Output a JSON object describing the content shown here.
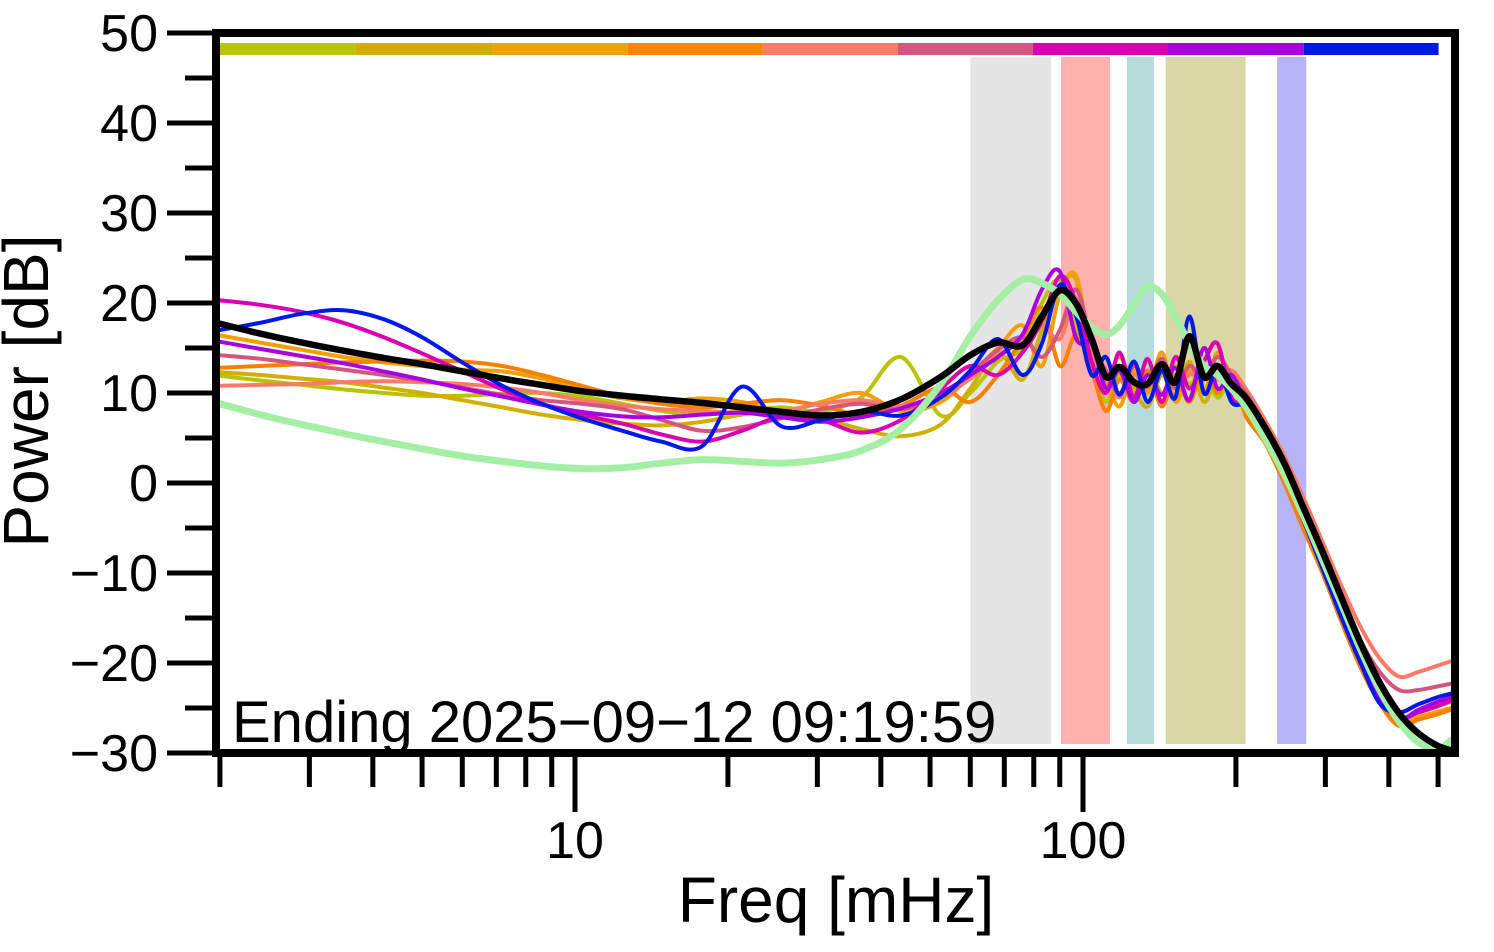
{
  "annotation": "Ending 2025−09−12 09:19:59",
  "chart_data": {
    "type": "line",
    "title": "",
    "xlabel": "Freq [mHz]",
    "ylabel": "Power [dB]",
    "x_scale": "log",
    "xlim": [
      2,
      530
    ],
    "ylim": [
      -30,
      50
    ],
    "grid": false,
    "legend_position": "none",
    "x_major_ticks": [
      10,
      100
    ],
    "x_major_tick_labels": [
      "10",
      "100"
    ],
    "x_minor_ticks": [
      2,
      3,
      4,
      5,
      6,
      7,
      8,
      9,
      20,
      30,
      40,
      50,
      60,
      70,
      80,
      90,
      200,
      300,
      400,
      500
    ],
    "y_major_ticks": [
      50,
      40,
      30,
      20,
      10,
      0,
      -10,
      -20,
      -30
    ],
    "y_major_tick_labels": [
      "50",
      "40",
      "30",
      "20",
      "10",
      "0",
      "−10",
      "−20",
      "−30"
    ],
    "y_minor_ticks": [
      45,
      35,
      25,
      15,
      5,
      -5,
      -15,
      -25
    ],
    "x_mHz": [
      2,
      2.4,
      2.9,
      3.5,
      4.2,
      5,
      6,
      7.2,
      8.6,
      10.3,
      12.4,
      14.8,
      17.8,
      21.3,
      25.5,
      30.5,
      36.6,
      43.8,
      52.5,
      60,
      68,
      76,
      83,
      90,
      97,
      104,
      111,
      118,
      126,
      134,
      143,
      152,
      162,
      173,
      184,
      196,
      209,
      228,
      249,
      271,
      296,
      323,
      352,
      384,
      419,
      457,
      499,
      530
    ],
    "series": [
      {
        "name": "spectrum-1-chartreuse",
        "color": "#b8c400",
        "width": 4,
        "values": [
          11.9,
          11.4,
          10.9,
          10.4,
          10.0,
          9.7,
          9.7,
          9.9,
          10.0,
          9.6,
          8.8,
          8.0,
          7.6,
          8.0,
          8.4,
          8.0,
          9.5,
          14.0,
          7.5,
          10.0,
          13.5,
          15.0,
          20.0,
          22.5,
          17.0,
          13.0,
          9.0,
          12.0,
          10.0,
          13.5,
          10.0,
          13.0,
          11.0,
          12.5,
          9.5,
          11.5,
          8.5,
          5.0,
          0.8,
          -4.2,
          -9.2,
          -14.8,
          -19.8,
          -23.8,
          -26.3,
          -25.5,
          -24.7,
          -24.0
        ]
      },
      {
        "name": "spectrum-2-gold",
        "color": "#d2ae00",
        "width": 4,
        "values": [
          12.3,
          12.0,
          11.6,
          11.2,
          10.6,
          10.0,
          9.2,
          8.4,
          7.6,
          7.0,
          6.6,
          6.4,
          6.8,
          7.6,
          8.0,
          7.2,
          6.0,
          5.2,
          6.5,
          10.5,
          14.5,
          11.5,
          17.0,
          21.5,
          22.5,
          13.0,
          11.0,
          14.0,
          10.5,
          8.5,
          12.0,
          9.5,
          13.5,
          9.0,
          12.0,
          10.5,
          9.5,
          5.5,
          1.0,
          -3.5,
          -9.5,
          -14.0,
          -19.5,
          -23.5,
          -26.0,
          -25.4,
          -24.8,
          -24.3
        ]
      },
      {
        "name": "spectrum-3-orange",
        "color": "#f2a000",
        "width": 4,
        "values": [
          16.4,
          15.6,
          14.8,
          14.0,
          13.4,
          13.0,
          12.6,
          12.4,
          11.6,
          10.4,
          9.4,
          9.0,
          9.4,
          9.0,
          8.0,
          9.0,
          10.0,
          8.0,
          9.0,
          12.0,
          15.0,
          17.5,
          13.0,
          21.0,
          23.0,
          14.0,
          11.5,
          8.5,
          12.5,
          10.0,
          14.5,
          9.0,
          12.5,
          10.0,
          14.5,
          11.0,
          8.0,
          5.0,
          0.5,
          -4.5,
          -9.0,
          -14.5,
          -19.5,
          -23.5,
          -26.5,
          -26.0,
          -25.4,
          -25.0
        ]
      },
      {
        "name": "spectrum-4-darkorange",
        "color": "#f87f00",
        "width": 4,
        "values": [
          12.8,
          13.0,
          13.2,
          13.4,
          13.5,
          13.6,
          13.5,
          13.0,
          12.0,
          10.8,
          9.6,
          8.8,
          8.4,
          8.8,
          9.2,
          8.6,
          7.6,
          8.6,
          10.6,
          9.0,
          12.0,
          16.0,
          19.5,
          13.0,
          16.5,
          12.5,
          8.0,
          11.5,
          9.0,
          12.5,
          8.5,
          12.0,
          9.0,
          13.0,
          10.0,
          12.5,
          7.5,
          4.5,
          0.0,
          -5.0,
          -10.0,
          -15.5,
          -20.5,
          -24.5,
          -27.0,
          -26.3,
          -25.7,
          -25.2
        ]
      },
      {
        "name": "spectrum-5-salmon",
        "color": "#fa7a68",
        "width": 4,
        "values": [
          10.8,
          10.9,
          11.0,
          11.2,
          11.3,
          11.2,
          11.0,
          10.6,
          10.0,
          9.2,
          8.6,
          8.2,
          8.0,
          7.8,
          8.0,
          8.8,
          9.2,
          8.6,
          9.6,
          11.6,
          14.2,
          15.8,
          17.5,
          16.0,
          20.5,
          14.5,
          12.0,
          9.5,
          12.0,
          10.5,
          13.5,
          11.0,
          12.0,
          13.0,
          11.5,
          12.5,
          10.5,
          7.0,
          3.0,
          -1.5,
          -6.5,
          -11.5,
          -16.0,
          -19.5,
          -21.5,
          -21.0,
          -20.3,
          -19.8
        ]
      },
      {
        "name": "spectrum-6-raspberry",
        "color": "#d4557f",
        "width": 4,
        "values": [
          14.2,
          13.8,
          13.2,
          12.6,
          12.0,
          11.4,
          10.6,
          9.8,
          9.2,
          8.8,
          8.2,
          7.0,
          5.8,
          6.2,
          7.2,
          8.2,
          8.8,
          8.2,
          9.8,
          12.2,
          14.8,
          16.2,
          14.0,
          17.0,
          21.5,
          15.5,
          12.5,
          10.0,
          13.0,
          11.0,
          13.8,
          10.5,
          13.0,
          11.5,
          14.0,
          12.0,
          10.0,
          6.5,
          2.5,
          -2.5,
          -7.5,
          -12.5,
          -17.5,
          -21.0,
          -23.0,
          -23.0,
          -22.6,
          -22.3
        ]
      },
      {
        "name": "spectrum-7-magenta",
        "color": "#d800b0",
        "width": 4,
        "values": [
          20.3,
          19.8,
          19.0,
          17.8,
          16.2,
          14.4,
          12.4,
          10.4,
          8.8,
          7.6,
          6.6,
          5.4,
          4.6,
          5.8,
          7.4,
          7.0,
          5.6,
          7.0,
          10.5,
          13.0,
          12.0,
          14.5,
          18.0,
          23.0,
          20.0,
          13.5,
          10.0,
          14.5,
          9.5,
          13.8,
          9.0,
          14.0,
          10.5,
          13.5,
          15.5,
          9.5,
          9.0,
          6.0,
          1.5,
          -3.5,
          -8.5,
          -14.0,
          -19.0,
          -23.0,
          -26.0,
          -25.5,
          -24.8,
          -24.2
        ]
      },
      {
        "name": "spectrum-8-violet",
        "color": "#a800e0",
        "width": 4,
        "values": [
          15.7,
          14.9,
          14.1,
          13.3,
          12.4,
          11.5,
          10.5,
          9.6,
          8.7,
          7.9,
          7.4,
          7.3,
          7.6,
          7.8,
          7.3,
          6.8,
          7.3,
          8.3,
          10.0,
          12.0,
          14.0,
          16.5,
          21.5,
          23.5,
          16.0,
          15.5,
          10.5,
          12.5,
          9.0,
          12.0,
          9.8,
          12.8,
          9.2,
          15.0,
          10.5,
          12.0,
          9.0,
          5.8,
          1.2,
          -3.8,
          -9.0,
          -14.3,
          -19.3,
          -23.8,
          -26.2,
          -25.2,
          -24.3,
          -23.8
        ]
      },
      {
        "name": "spectrum-9-blue",
        "color": "#0018e8",
        "width": 4,
        "values": [
          17.0,
          17.8,
          18.8,
          19.2,
          18.2,
          16.2,
          13.4,
          10.8,
          8.8,
          7.2,
          5.8,
          4.6,
          4.1,
          10.7,
          6.3,
          7.0,
          8.0,
          7.5,
          9.5,
          12.5,
          16.0,
          12.0,
          15.5,
          22.0,
          18.5,
          12.0,
          14.0,
          9.8,
          13.5,
          9.0,
          12.5,
          9.5,
          18.5,
          10.0,
          13.0,
          9.0,
          8.5,
          5.5,
          1.0,
          -4.0,
          -9.5,
          -15.0,
          -20.0,
          -24.5,
          -25.5,
          -24.6,
          -23.8,
          -23.4
        ]
      },
      {
        "name": "reference-lightgreen",
        "color": "#a5efa5",
        "width": 7,
        "values": [
          8.8,
          7.6,
          6.5,
          5.5,
          4.6,
          3.8,
          3.0,
          2.4,
          1.9,
          1.6,
          1.7,
          2.2,
          2.6,
          2.4,
          2.2,
          2.6,
          3.6,
          6.0,
          11.0,
          16.3,
          20.3,
          22.6,
          22.2,
          21.0,
          19.0,
          17.3,
          16.5,
          17.5,
          19.8,
          21.8,
          21.0,
          18.5,
          15.5,
          13.0,
          12.0,
          10.5,
          8.5,
          5.0,
          1.0,
          -3.5,
          -8.5,
          -13.5,
          -18.5,
          -23.0,
          -26.5,
          -28.8,
          -29.6,
          -28.6
        ]
      },
      {
        "name": "mean-black",
        "color": "#000000",
        "width": 6.5,
        "values": [
          17.7,
          16.6,
          15.6,
          14.7,
          13.9,
          13.2,
          12.4,
          11.6,
          10.9,
          10.2,
          9.7,
          9.3,
          8.9,
          8.4,
          7.9,
          7.5,
          7.9,
          9.3,
          11.8,
          14.2,
          15.6,
          15.3,
          18.5,
          21.4,
          19.9,
          16.0,
          11.8,
          12.9,
          11.2,
          11.0,
          13.2,
          11.2,
          16.3,
          11.8,
          13.0,
          11.0,
          9.5,
          6.2,
          2.2,
          -2.6,
          -7.6,
          -12.8,
          -17.8,
          -22.2,
          -25.6,
          -27.8,
          -29.2,
          -29.7
        ]
      }
    ],
    "bands": [
      {
        "name": "band-gray",
        "color": "#e5e5e5",
        "f_start": 60,
        "f_end": 86.5
      },
      {
        "name": "band-pink",
        "color": "#fcb1ad",
        "f_start": 90.5,
        "f_end": 113
      },
      {
        "name": "band-teal",
        "color": "#b5dcda",
        "f_start": 122,
        "f_end": 138
      },
      {
        "name": "band-khaki",
        "color": "#d9d7a5",
        "f_start": 145.5,
        "f_end": 209
      },
      {
        "name": "band-lavender",
        "color": "#b6b3f8",
        "f_start": 241,
        "f_end": 275
      }
    ],
    "colorbar_segments": [
      {
        "color": "#b9c402",
        "f_start": 2.0,
        "f_end": 3.7
      },
      {
        "color": "#d2ae00",
        "f_start": 3.7,
        "f_end": 6.9
      },
      {
        "color": "#f2a000",
        "f_start": 6.9,
        "f_end": 12.7
      },
      {
        "color": "#f88500",
        "f_start": 12.7,
        "f_end": 23.4
      },
      {
        "color": "#fa7a68",
        "f_start": 23.4,
        "f_end": 43.2
      },
      {
        "color": "#d4557f",
        "f_start": 43.2,
        "f_end": 79.7
      },
      {
        "color": "#d800b0",
        "f_start": 79.7,
        "f_end": 147
      },
      {
        "color": "#a800e0",
        "f_start": 147,
        "f_end": 272
      },
      {
        "color": "#0018e8",
        "f_start": 272,
        "f_end": 501
      }
    ]
  }
}
